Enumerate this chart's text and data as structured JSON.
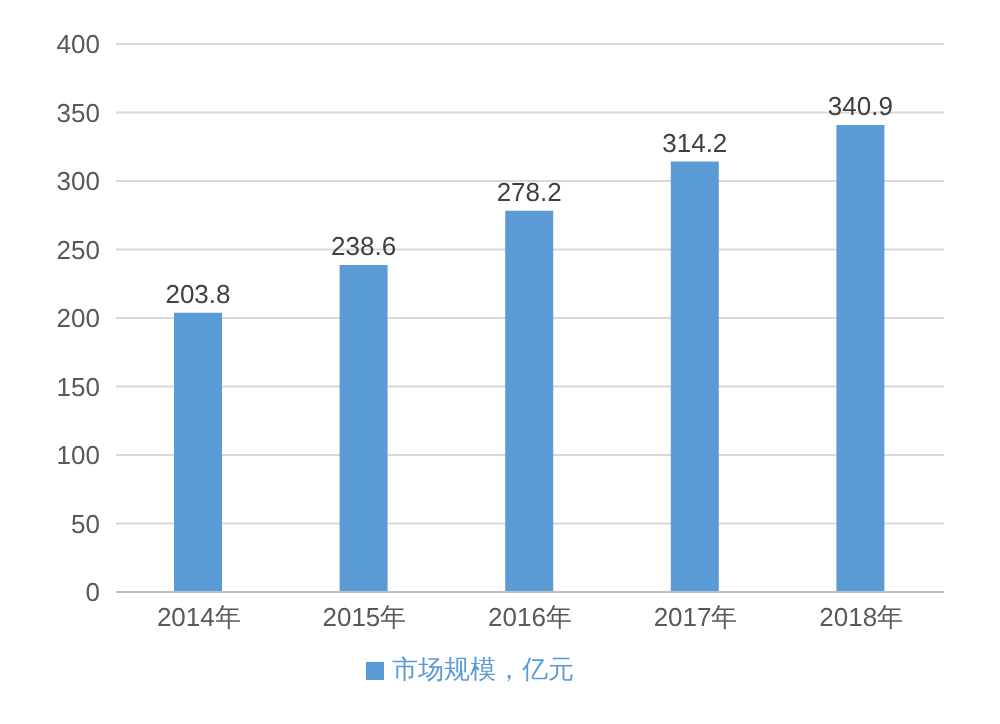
{
  "chart_data": {
    "type": "bar",
    "categories": [
      "2014年",
      "2015年",
      "2016年",
      "2017年",
      "2018年"
    ],
    "series": [
      {
        "name": "市场规模，亿元",
        "color": "#5b9bd5",
        "values": [
          203.8,
          238.6,
          278.2,
          314.2,
          340.9
        ]
      }
    ],
    "ylim": [
      0,
      400
    ],
    "yticks": [
      0,
      50,
      100,
      150,
      200,
      250,
      300,
      350,
      400
    ],
    "grid": "y",
    "legend": "bottom",
    "data_labels": true
  }
}
